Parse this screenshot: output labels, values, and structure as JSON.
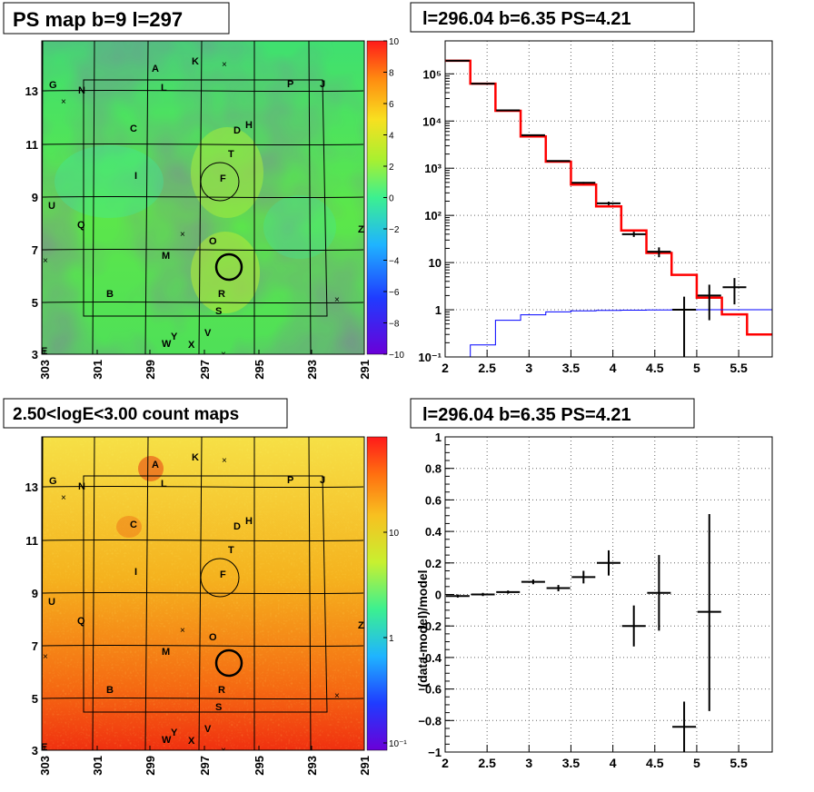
{
  "panels": {
    "map_top": {
      "title": "PS map b=9 l=297",
      "x_ticks": [
        "303",
        "301",
        "299",
        "297",
        "295",
        "293",
        "291"
      ],
      "y_ticks": [
        "3",
        "5",
        "7",
        "9",
        "11",
        "13"
      ],
      "colorbar_ticks": [
        "10",
        "8",
        "6",
        "4",
        "2",
        "0",
        "−2",
        "−4",
        "−6",
        "−8",
        "−10"
      ],
      "labels": [
        "A",
        "K",
        "G",
        "N",
        "L",
        "P",
        "J",
        "C",
        "D",
        "H",
        "T",
        "F",
        "I",
        "U",
        "Q",
        "O",
        "Z",
        "M",
        "B",
        "R",
        "S",
        "V",
        "Y",
        "W",
        "X",
        "E"
      ]
    },
    "map_bottom": {
      "title": "2.50<logE<3.00 count maps",
      "x_ticks": [
        "303",
        "301",
        "299",
        "297",
        "295",
        "293",
        "291"
      ],
      "y_ticks": [
        "3",
        "5",
        "7",
        "9",
        "11",
        "13"
      ],
      "colorbar_ticks": [
        "10",
        "1",
        "10⁻¹"
      ],
      "labels": [
        "A",
        "K",
        "G",
        "N",
        "L",
        "P",
        "J",
        "C",
        "D",
        "H",
        "T",
        "F",
        "I",
        "U",
        "Q",
        "O",
        "Z",
        "M",
        "B",
        "R",
        "S",
        "V",
        "Y",
        "W",
        "X",
        "E"
      ]
    }
  },
  "chart_data": [
    {
      "type": "line",
      "title": "l=296.04 b=6.35 PS=4.21",
      "xlim": [
        2.0,
        5.9
      ],
      "ylim": [
        0.1,
        500000
      ],
      "yscale": "log",
      "grid": true,
      "x_ticks": [
        "2",
        "2.5",
        "3",
        "3.5",
        "4",
        "4.5",
        "5",
        "5.5"
      ],
      "y_ticks": [
        "10⁻¹",
        "1",
        "10",
        "10²",
        "10³",
        "10⁴",
        "10⁵"
      ],
      "bin_edges": [
        2.0,
        2.3,
        2.6,
        2.9,
        3.2,
        3.5,
        3.8,
        4.1,
        4.4,
        4.7,
        5.0,
        5.3,
        5.6,
        5.9
      ],
      "series": [
        {
          "values": [
            190000,
            62000,
            16500,
            4700,
            1380,
            450,
            155,
            48,
            16,
            5.5,
            1.8,
            0.8,
            0.3
          ],
          "color": "#ff0000"
        },
        {
          "values": [
            0.1,
            0.18,
            0.6,
            0.78,
            0.9,
            0.95,
            0.97,
            0.98,
            0.99,
            1.0,
            1.0,
            1.0,
            1.0
          ],
          "color": "#0000ff"
        }
      ],
      "points": [
        {
          "x": 2.15,
          "y": 190000,
          "lo": 189000,
          "hi": 191000
        },
        {
          "x": 2.45,
          "y": 62000,
          "lo": 61500,
          "hi": 62500
        },
        {
          "x": 2.75,
          "y": 16800,
          "lo": 16600,
          "hi": 17000
        },
        {
          "x": 3.05,
          "y": 5000,
          "lo": 4900,
          "hi": 5100
        },
        {
          "x": 3.35,
          "y": 1420,
          "lo": 1380,
          "hi": 1460
        },
        {
          "x": 3.65,
          "y": 490,
          "lo": 470,
          "hi": 510
        },
        {
          "x": 3.95,
          "y": 180,
          "lo": 165,
          "hi": 195
        },
        {
          "x": 4.25,
          "y": 40,
          "lo": 35,
          "hi": 45
        },
        {
          "x": 4.55,
          "y": 17,
          "lo": 13,
          "hi": 21
        },
        {
          "x": 4.85,
          "y": 1,
          "lo": 0.1,
          "hi": 1.9
        },
        {
          "x": 5.15,
          "y": 2,
          "lo": 0.6,
          "hi": 3.4
        },
        {
          "x": 5.45,
          "y": 3,
          "lo": 1.3,
          "hi": 4.7
        }
      ]
    },
    {
      "type": "scatter",
      "title": "l=296.04 b=6.35 PS=4.21",
      "ylabel": "(data-model)/model",
      "xlim": [
        2.0,
        5.9
      ],
      "ylim": [
        -1,
        1
      ],
      "grid": true,
      "x_ticks": [
        "2",
        "2.5",
        "3",
        "3.5",
        "4",
        "4.5",
        "5",
        "5.5"
      ],
      "y_ticks": [
        "−1",
        "−0.8",
        "−0.6",
        "−0.4",
        "−0.2",
        "0",
        "0.2",
        "0.4",
        "0.6",
        "0.8",
        "1"
      ],
      "points": [
        {
          "x": 2.15,
          "y": -0.01,
          "lo": -0.02,
          "hi": 0.0
        },
        {
          "x": 2.45,
          "y": 0.0,
          "lo": -0.01,
          "hi": 0.01
        },
        {
          "x": 2.75,
          "y": 0.015,
          "lo": 0.005,
          "hi": 0.025
        },
        {
          "x": 3.05,
          "y": 0.08,
          "lo": 0.065,
          "hi": 0.095
        },
        {
          "x": 3.35,
          "y": 0.04,
          "lo": 0.02,
          "hi": 0.06
        },
        {
          "x": 3.65,
          "y": 0.11,
          "lo": 0.07,
          "hi": 0.15
        },
        {
          "x": 3.95,
          "y": 0.2,
          "lo": 0.12,
          "hi": 0.28
        },
        {
          "x": 4.25,
          "y": -0.2,
          "lo": -0.33,
          "hi": -0.07
        },
        {
          "x": 4.55,
          "y": 0.01,
          "lo": -0.23,
          "hi": 0.25
        },
        {
          "x": 4.85,
          "y": -0.84,
          "lo": -1.0,
          "hi": -0.68
        },
        {
          "x": 5.15,
          "y": -0.11,
          "lo": -0.74,
          "hi": 0.51
        }
      ]
    }
  ]
}
